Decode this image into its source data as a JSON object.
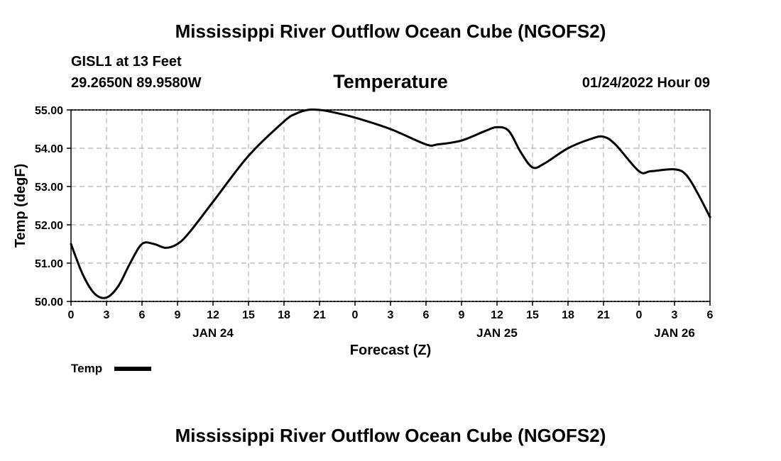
{
  "header": {
    "title": "Mississippi River Outflow Ocean Cube (NGOFS2)",
    "station": "GISL1 at 13 Feet",
    "coords": "29.2650N  89.9580W",
    "variable": "Temperature",
    "datetime": "01/24/2022 Hour 09"
  },
  "footer": {
    "title": "Mississippi River Outflow Ocean Cube (NGOFS2)"
  },
  "chart_data": {
    "type": "line",
    "title": "Temperature",
    "xlabel": "Forecast (Z)",
    "ylabel": "Temp (degF)",
    "xlim": [
      0,
      54
    ],
    "ylim": [
      50,
      55
    ],
    "grid": true,
    "xticks": [
      0,
      3,
      6,
      9,
      12,
      15,
      18,
      21,
      24,
      27,
      30,
      33,
      36,
      39,
      42,
      45,
      48,
      51,
      54
    ],
    "xtick_labels": [
      "0",
      "3",
      "6",
      "9",
      "12",
      "15",
      "18",
      "21",
      "0",
      "3",
      "6",
      "9",
      "12",
      "15",
      "18",
      "21",
      "0",
      "3",
      "6"
    ],
    "day_labels": [
      {
        "x": 12,
        "label": "JAN 24"
      },
      {
        "x": 36,
        "label": "JAN 25"
      },
      {
        "x": 51,
        "label": "JAN 26"
      }
    ],
    "yticks": [
      50,
      51,
      52,
      53,
      54,
      55
    ],
    "ytick_labels": [
      "50.00",
      "51.00",
      "52.00",
      "53.00",
      "54.00",
      "55.00"
    ],
    "legend": [
      {
        "name": "Temp",
        "color": "#000000"
      }
    ],
    "series": [
      {
        "name": "Temp",
        "color": "#000000",
        "x": [
          0,
          1,
          2,
          3,
          4,
          5,
          6,
          7,
          8,
          9,
          10,
          12,
          15,
          18,
          19,
          20,
          21,
          22,
          24,
          27,
          30,
          31,
          33,
          35,
          36,
          37,
          38,
          39,
          40,
          42,
          44,
          45,
          46,
          48,
          49,
          51,
          52,
          53,
          54
        ],
        "y": [
          51.5,
          50.7,
          50.2,
          50.1,
          50.4,
          51.0,
          51.5,
          51.5,
          51.4,
          51.5,
          51.8,
          52.6,
          53.8,
          54.7,
          54.9,
          55.0,
          55.0,
          54.95,
          54.8,
          54.5,
          54.1,
          54.1,
          54.2,
          54.45,
          54.55,
          54.45,
          53.9,
          53.5,
          53.6,
          54.0,
          54.25,
          54.3,
          54.1,
          53.4,
          53.4,
          53.45,
          53.3,
          52.8,
          52.2
        ]
      }
    ]
  }
}
